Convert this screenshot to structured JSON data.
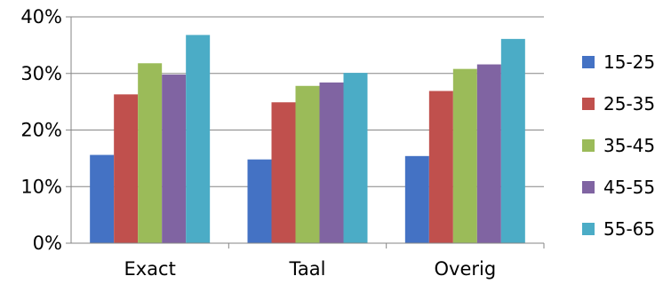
{
  "chart_data": {
    "type": "bar",
    "categories": [
      "Exact",
      "Taal",
      "Overig"
    ],
    "series": [
      {
        "name": "15-25",
        "color": "#4472C4",
        "values": [
          15.6,
          14.8,
          15.4
        ]
      },
      {
        "name": "25-35",
        "color": "#C0504D",
        "values": [
          26.3,
          24.9,
          26.9
        ]
      },
      {
        "name": "35-45",
        "color": "#9BBB59",
        "values": [
          31.8,
          27.8,
          30.8
        ]
      },
      {
        "name": "45-55",
        "color": "#8064A2",
        "values": [
          29.8,
          28.4,
          31.6
        ]
      },
      {
        "name": "55-65",
        "color": "#4BACC6",
        "values": [
          36.8,
          30.1,
          36.1
        ]
      }
    ],
    "ylim": [
      0,
      40
    ],
    "yticks": [
      "0%",
      "10%",
      "20%",
      "30%",
      "40%"
    ],
    "y_unit": "%",
    "grid": true,
    "legend_position": "right",
    "title": "",
    "xlabel": "",
    "ylabel": ""
  }
}
